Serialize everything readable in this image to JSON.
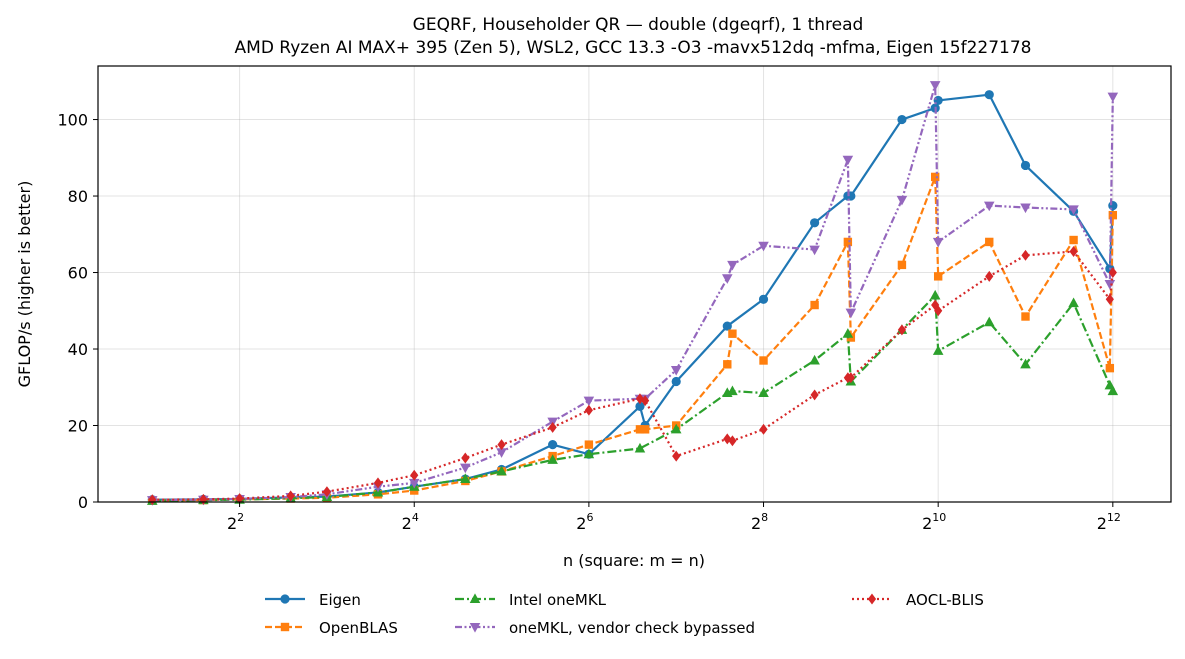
{
  "chart_data": {
    "type": "line",
    "title": "GEQRF, Householder QR — double (dgeqrf), 1 thread",
    "subtitle": "AMD Ryzen AI MAX+ 395 (Zen 5), WSL2, GCC 13.3 -O3 -mavx512dq -mfma, Eigen 15f227178",
    "xlabel": "n (square: m = n)",
    "ylabel": "GFLOP/s (higher is better)",
    "x_scale": "log2",
    "xlim": [
      1.3,
      6500
    ],
    "ylim": [
      0,
      114
    ],
    "x_ticks": [
      {
        "base": "2",
        "exp": "2",
        "value": 4
      },
      {
        "base": "2",
        "exp": "4",
        "value": 16
      },
      {
        "base": "2",
        "exp": "6",
        "value": 64
      },
      {
        "base": "2",
        "exp": "8",
        "value": 256
      },
      {
        "base": "2",
        "exp": "10",
        "value": 1024
      },
      {
        "base": "2",
        "exp": "12",
        "value": 4096
      }
    ],
    "y_ticks": [
      "0",
      "20",
      "40",
      "60",
      "80",
      "100"
    ],
    "grid": true,
    "legend_position": "bottom",
    "series": [
      {
        "name": "Eigen",
        "color": "#1f77b4",
        "dash": "solid",
        "marker": "circle",
        "x": [
          2,
          3,
          4,
          6,
          8,
          12,
          16,
          24,
          32,
          48,
          64,
          96,
          100,
          128,
          192,
          256,
          384,
          500,
          512,
          768,
          1000,
          1024,
          1536,
          2048,
          3000,
          4000,
          4096
        ],
        "y": [
          0.6,
          0.7,
          0.8,
          1.2,
          1.4,
          2.5,
          4,
          6,
          8.5,
          15,
          12.5,
          25,
          20,
          31.5,
          46,
          53,
          73,
          80,
          80,
          100,
          103,
          105,
          106.5,
          88,
          76,
          61,
          77.5
        ]
      },
      {
        "name": "OpenBLAS",
        "color": "#ff7f0e",
        "dash": "dashed",
        "marker": "square",
        "x": [
          2,
          3,
          4,
          6,
          8,
          12,
          16,
          24,
          32,
          48,
          64,
          96,
          100,
          128,
          192,
          200,
          256,
          384,
          500,
          512,
          768,
          1000,
          1024,
          1536,
          2048,
          3000,
          4000,
          4096
        ],
        "y": [
          0.4,
          0.5,
          0.7,
          0.9,
          1.1,
          2,
          3,
          5.5,
          8,
          12,
          15,
          19,
          19,
          20,
          36,
          44,
          37,
          51.5,
          68,
          43,
          62,
          85,
          59,
          68,
          48.5,
          68.5,
          35,
          75
        ]
      },
      {
        "name": "Intel oneMKL",
        "color": "#2ca02c",
        "dash": "dashdot",
        "marker": "triangle-up",
        "x": [
          2,
          3,
          4,
          6,
          8,
          12,
          16,
          24,
          32,
          48,
          64,
          96,
          128,
          192,
          200,
          256,
          384,
          500,
          512,
          768,
          1000,
          1024,
          1536,
          2048,
          3000,
          4000,
          4096
        ],
        "y": [
          0.3,
          0.5,
          0.6,
          1,
          1.3,
          2.5,
          4,
          6,
          8,
          11,
          12.5,
          14,
          19,
          28.5,
          29,
          28.5,
          37,
          44,
          31.5,
          45,
          54,
          39.5,
          47,
          36,
          52,
          30.5,
          29
        ]
      },
      {
        "name": "oneMKL, vendor check bypassed",
        "color": "#9467bd",
        "dash": "dashdotdot",
        "marker": "triangle-down",
        "x": [
          2,
          3,
          4,
          6,
          8,
          12,
          16,
          24,
          32,
          48,
          64,
          96,
          100,
          128,
          192,
          200,
          256,
          384,
          500,
          512,
          768,
          1000,
          1024,
          1536,
          2048,
          3000,
          4000,
          4096
        ],
        "y": [
          0.5,
          0.6,
          0.8,
          1.3,
          2,
          4,
          5,
          9,
          13,
          21,
          26.5,
          27,
          27,
          34.5,
          58.5,
          62,
          67,
          66,
          89.5,
          49.5,
          79,
          109,
          68,
          77.5,
          77,
          76.5,
          57,
          106
        ]
      },
      {
        "name": "AOCL-BLIS",
        "color": "#d62728",
        "dash": "dotted",
        "marker": "diamond",
        "x": [
          2,
          3,
          4,
          6,
          8,
          12,
          16,
          24,
          32,
          48,
          64,
          96,
          100,
          128,
          192,
          200,
          256,
          384,
          500,
          512,
          768,
          1000,
          1024,
          1536,
          2048,
          3000,
          4000,
          4096
        ],
        "y": [
          0.6,
          0.7,
          0.9,
          1.6,
          2.7,
          5,
          7,
          11.5,
          15,
          19.5,
          24,
          27,
          26.5,
          12,
          16.5,
          16,
          19,
          28,
          32.5,
          32.5,
          45,
          51.5,
          50,
          59,
          64.5,
          65.5,
          53,
          60
        ]
      }
    ]
  }
}
